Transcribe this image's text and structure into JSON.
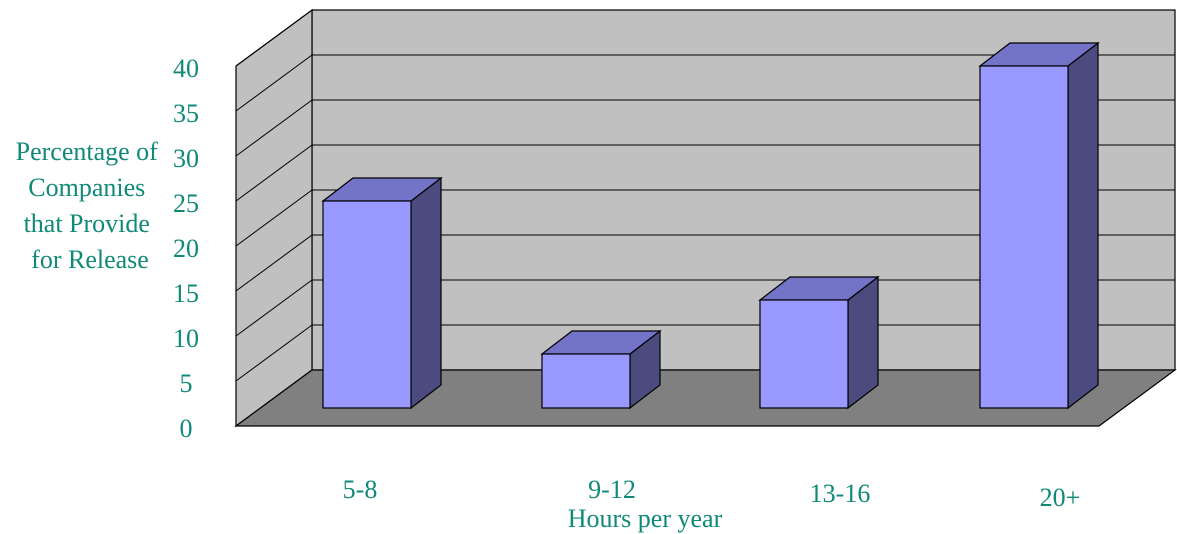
{
  "chart_data": {
    "type": "bar",
    "style": "3d",
    "categories": [
      "5-8",
      "9-12",
      "13-16",
      "20+"
    ],
    "values": [
      23,
      6,
      12,
      38
    ],
    "ylabel_lines": [
      "Percentage of",
      "Companies",
      "that Provide",
      "for Release"
    ],
    "xlabel": "Hours per year",
    "ylim": [
      0,
      40
    ],
    "yticks": [
      "0",
      "5",
      "10",
      "15",
      "20",
      "25",
      "30",
      "35",
      "40"
    ],
    "grid": true,
    "legend": "none"
  },
  "colors": {
    "bar_front": "#9999ff",
    "bar_top": "#7373c8",
    "bar_side": "#4b4b80",
    "wall": "#c0c0c0",
    "floor": "#808080",
    "text": "#108a78"
  }
}
